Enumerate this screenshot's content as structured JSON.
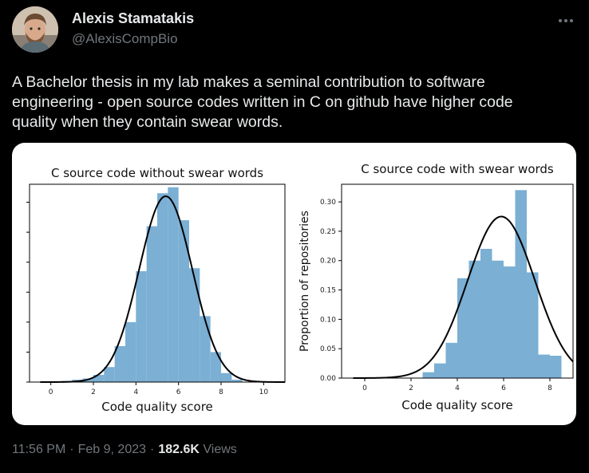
{
  "author": {
    "name": "Alexis Stamatakis",
    "handle": "@AlexisCompBio"
  },
  "tweet": {
    "text": "A Bachelor thesis in my lab makes a seminal contribution to software\nengineering - open source codes written in C on github have higher code\nquality when they contain swear words."
  },
  "meta": {
    "time": "11:56 PM",
    "separator": "·",
    "date": "Feb 9, 2023",
    "views_count": "182.6K",
    "views_label": "Views"
  },
  "icons": {
    "more": "more-horizontal-icon"
  },
  "colors": {
    "bar": "#7bafd4",
    "curve": "#000000",
    "background": "#000000",
    "text_secondary": "#71767b"
  },
  "chart_data": [
    {
      "type": "bar",
      "title": "C source code without swear words",
      "xlabel": "Code quality score",
      "ylabel": "",
      "xlim": [
        -1,
        11
      ],
      "ylim": [
        0,
        0.33
      ],
      "x_ticks": [
        "0",
        "2",
        "4",
        "6",
        "8",
        "10"
      ],
      "bin_width": 0.5,
      "bins": [
        {
          "x": 0.5,
          "value": 0.002
        },
        {
          "x": 1.0,
          "value": 0.004
        },
        {
          "x": 1.5,
          "value": 0.006
        },
        {
          "x": 2.0,
          "value": 0.012
        },
        {
          "x": 2.5,
          "value": 0.025
        },
        {
          "x": 3.0,
          "value": 0.06
        },
        {
          "x": 3.5,
          "value": 0.1
        },
        {
          "x": 4.0,
          "value": 0.185
        },
        {
          "x": 4.5,
          "value": 0.26
        },
        {
          "x": 5.0,
          "value": 0.315
        },
        {
          "x": 5.5,
          "value": 0.325
        },
        {
          "x": 6.0,
          "value": 0.27
        },
        {
          "x": 6.5,
          "value": 0.19
        },
        {
          "x": 7.0,
          "value": 0.11
        },
        {
          "x": 7.5,
          "value": 0.05
        },
        {
          "x": 8.0,
          "value": 0.015
        },
        {
          "x": 8.5,
          "value": 0.004
        }
      ],
      "curve": {
        "type": "normal",
        "mean": 5.4,
        "sd": 1.25,
        "peak": 0.31
      }
    },
    {
      "type": "bar",
      "title": "C source code with swear words",
      "xlabel": "Code quality score",
      "ylabel": "Proportion of repositories",
      "xlim": [
        -1,
        9
      ],
      "ylim": [
        0,
        0.33
      ],
      "x_ticks": [
        "0",
        "2",
        "4",
        "6",
        "8"
      ],
      "y_ticks": [
        "0.00",
        "0.05",
        "0.10",
        "0.15",
        "0.20",
        "0.25",
        "0.30"
      ],
      "bin_width": 0.5,
      "bins": [
        {
          "x": 2.5,
          "value": 0.01
        },
        {
          "x": 3.0,
          "value": 0.025
        },
        {
          "x": 3.5,
          "value": 0.06
        },
        {
          "x": 4.0,
          "value": 0.17
        },
        {
          "x": 4.5,
          "value": 0.2
        },
        {
          "x": 5.0,
          "value": 0.22
        },
        {
          "x": 5.5,
          "value": 0.2
        },
        {
          "x": 6.0,
          "value": 0.19
        },
        {
          "x": 6.5,
          "value": 0.32
        },
        {
          "x": 7.0,
          "value": 0.18
        },
        {
          "x": 7.5,
          "value": 0.04
        },
        {
          "x": 8.0,
          "value": 0.038
        }
      ],
      "curve": {
        "type": "normal",
        "mean": 5.9,
        "sd": 1.45,
        "peak": 0.275
      }
    }
  ]
}
